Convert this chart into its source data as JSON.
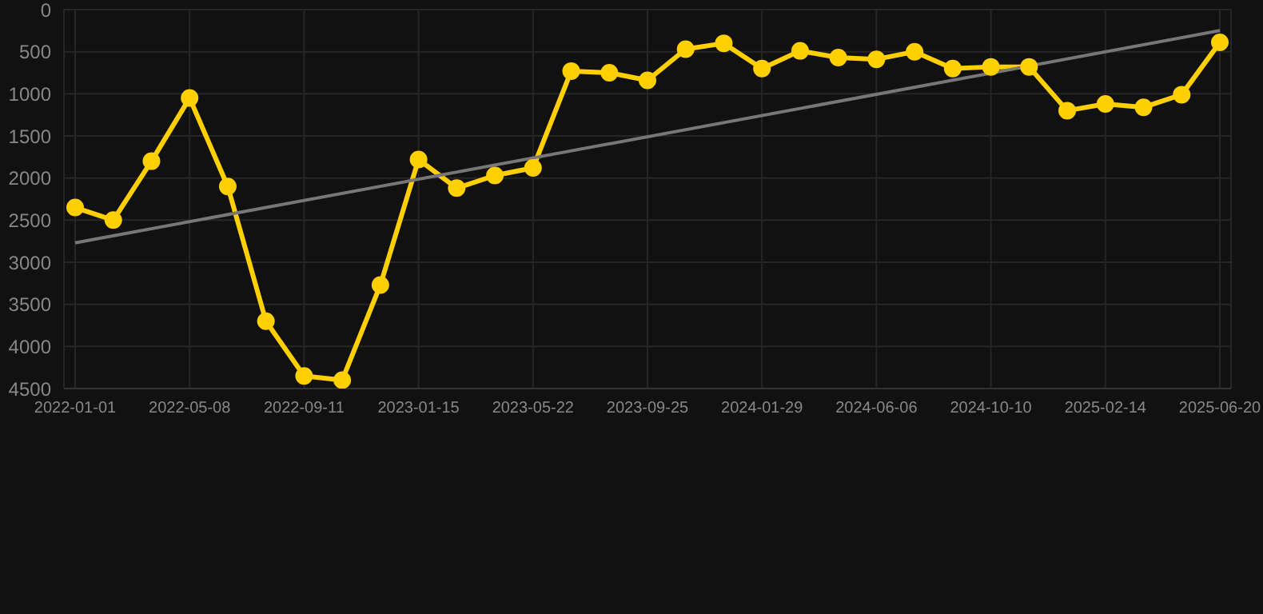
{
  "chart_data": {
    "type": "line",
    "categories": [
      "2022-01-01",
      null,
      null,
      "2022-05-08",
      null,
      null,
      "2022-09-11",
      null,
      null,
      "2023-01-15",
      null,
      null,
      "2023-05-22",
      null,
      null,
      "2023-09-25",
      null,
      null,
      "2024-01-29",
      null,
      null,
      "2024-06-06",
      null,
      null,
      "2024-10-10",
      null,
      null,
      "2025-02-14",
      null,
      null,
      "2025-06-20"
    ],
    "series": [
      {
        "color": "#ffd000",
        "marker": "circle",
        "values": [
          2350,
          2500,
          1800,
          1050,
          2100,
          3700,
          4350,
          4400,
          3270,
          1780,
          2120,
          1970,
          1880,
          730,
          750,
          840,
          470,
          400,
          700,
          490,
          570,
          590,
          500,
          700,
          680,
          680,
          1200,
          1120,
          1160,
          1010,
          390
        ]
      },
      {
        "color": "#777777",
        "marker": "none",
        "values": [
          2770,
          null,
          null,
          null,
          null,
          null,
          null,
          null,
          null,
          null,
          null,
          null,
          null,
          null,
          null,
          null,
          null,
          null,
          null,
          null,
          null,
          null,
          null,
          null,
          null,
          null,
          null,
          null,
          null,
          null,
          250
        ]
      }
    ],
    "ylim": [
      4500,
      0
    ],
    "yticks": [
      0,
      500,
      1000,
      1500,
      2000,
      2500,
      3000,
      3500,
      4000,
      4500
    ],
    "grid": true,
    "legend": false
  }
}
